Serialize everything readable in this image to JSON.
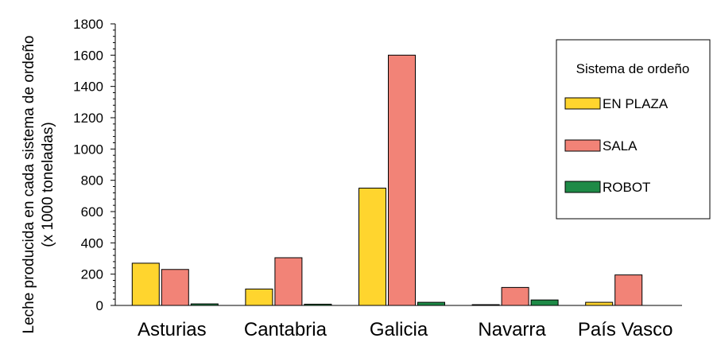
{
  "chart_data": {
    "type": "bar",
    "categories": [
      "Asturias",
      "Cantabria",
      "Galicia",
      "Navarra",
      "País Vasco"
    ],
    "series": [
      {
        "name": "EN PLAZA",
        "color": "#FFD52E",
        "values": [
          270,
          105,
          750,
          5,
          20
        ]
      },
      {
        "name": "SALA",
        "color": "#F28377",
        "values": [
          230,
          305,
          1600,
          115,
          195
        ]
      },
      {
        "name": "ROBOT",
        "color": "#1E8A47",
        "values": [
          10,
          8,
          20,
          35,
          0
        ]
      }
    ],
    "title": "",
    "xlabel": "",
    "ylabel": [
      "Leche producida en cada sistema de ordeño",
      "(x 1000 toneladas)"
    ],
    "ylim": [
      0,
      1800
    ],
    "yticks": [
      0,
      200,
      400,
      600,
      800,
      1000,
      1200,
      1400,
      1600,
      1800
    ],
    "grid": false,
    "legend": {
      "title": "Sistema de ordeño",
      "placement": "top-right"
    }
  }
}
